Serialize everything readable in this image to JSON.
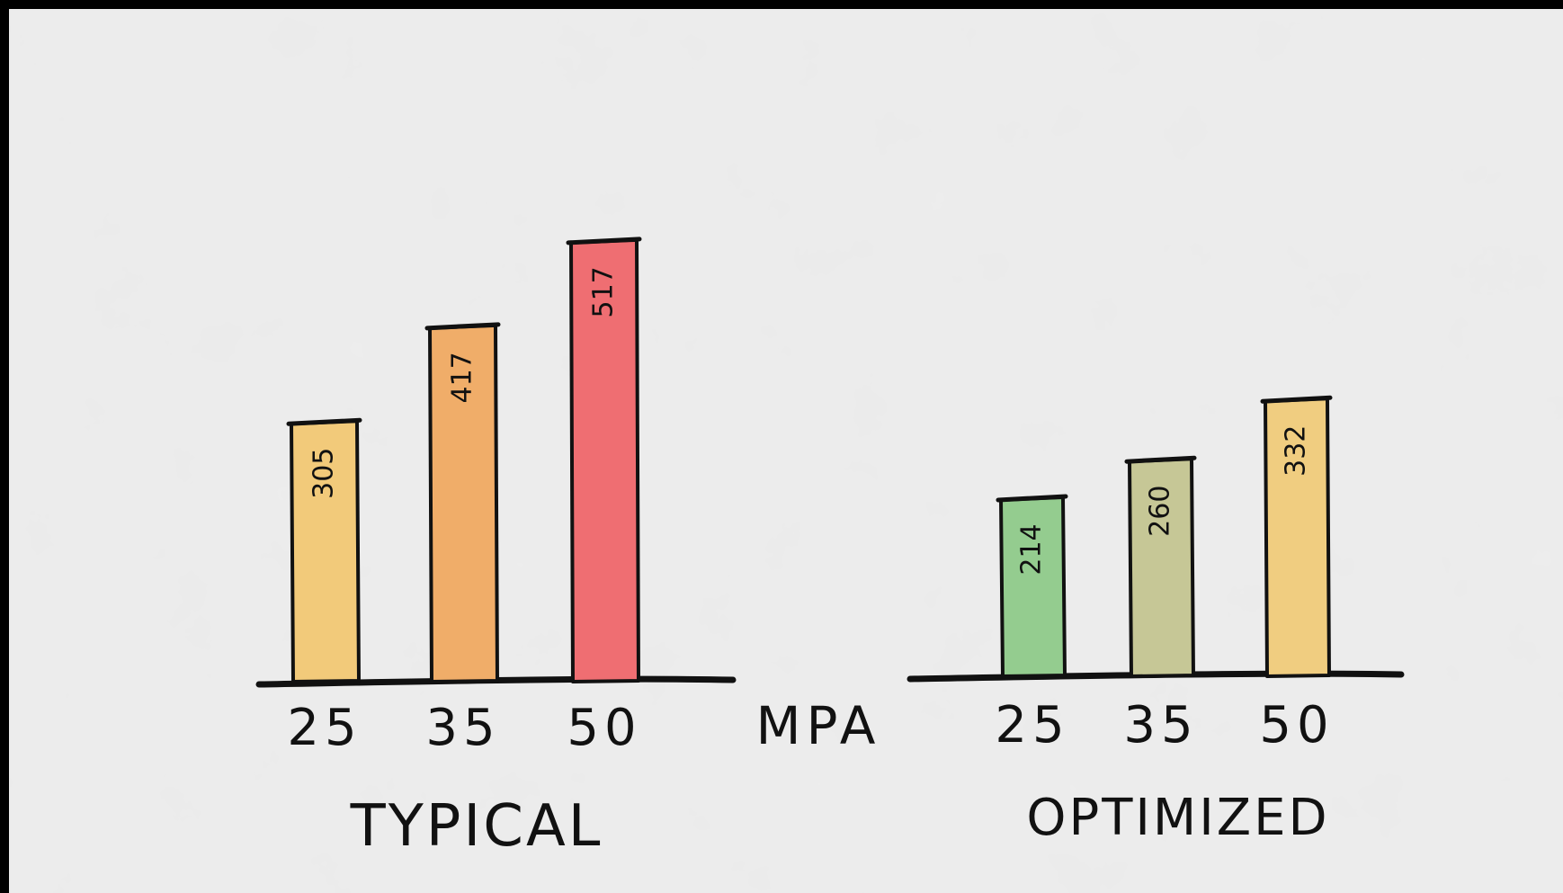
{
  "chart_data": [
    {
      "type": "bar",
      "categories": [
        "25",
        "35",
        "50"
      ],
      "values": [
        305,
        417,
        517
      ],
      "title": "TYPICAL",
      "colors": [
        "#f2ca7a",
        "#f0ad69",
        "#ef6e72"
      ]
    },
    {
      "type": "bar",
      "categories": [
        "25",
        "35",
        "50"
      ],
      "values": [
        214,
        260,
        332
      ],
      "title": "OPTIMIZED",
      "colors": [
        "#94cc8f",
        "#c6c796",
        "#f0cd80"
      ]
    }
  ],
  "shared_axis_label": "MPA",
  "colors": {
    "paper": "#ebebeb",
    "ink": "#111111",
    "frame": "#000000"
  }
}
